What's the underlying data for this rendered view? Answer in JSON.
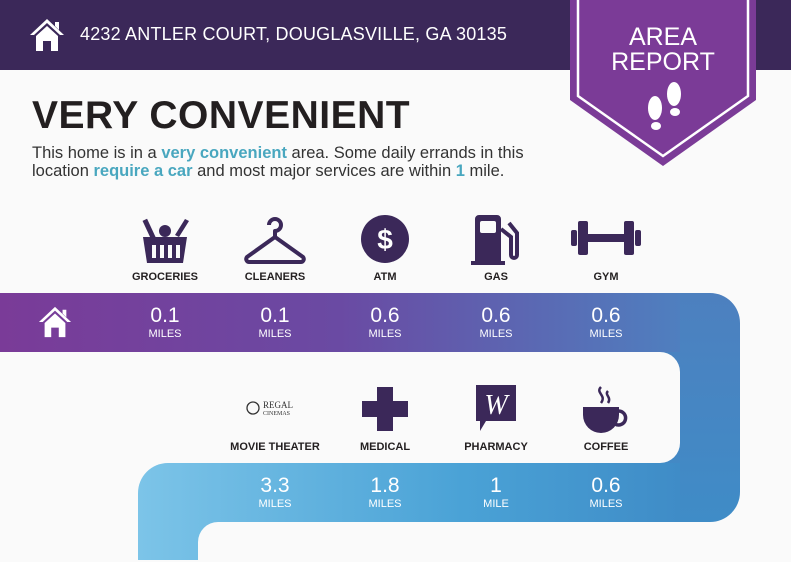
{
  "header": {
    "address": "4232 ANTLER COURT, DOUGLASVILLE, GA 30135",
    "home_icon": "house-icon"
  },
  "badge": {
    "line1": "AREA",
    "line2": "REPORT",
    "icon": "footprints-icon"
  },
  "title": "VERY CONVENIENT",
  "description": {
    "p1": "This home is in a ",
    "h1": "very convenient",
    "p2": " area. Some daily errands in this location ",
    "h2": "require a car",
    "p3": " and most major services are within ",
    "h3": "1",
    "p4": " mile."
  },
  "colors": {
    "header": "#3b2859",
    "accent": "#49a7bf",
    "icon": "#3b2859",
    "row1_start": "#7a3b98",
    "row1_end": "#4f7fbf",
    "row2_start": "#7cc4e8",
    "row2_end": "#3f8cc7"
  },
  "row1": [
    {
      "label": "GROCERIES",
      "value": "0.1",
      "unit": "MILES",
      "icon": "grocery-basket-icon"
    },
    {
      "label": "CLEANERS",
      "value": "0.1",
      "unit": "MILES",
      "icon": "hanger-icon"
    },
    {
      "label": "ATM",
      "value": "0.6",
      "unit": "MILES",
      "icon": "dollar-icon"
    },
    {
      "label": "GAS",
      "value": "0.6",
      "unit": "MILES",
      "icon": "gas-pump-icon"
    },
    {
      "label": "GYM",
      "value": "0.6",
      "unit": "MILES",
      "icon": "dumbbell-icon"
    }
  ],
  "row2": [
    {
      "label": "MOVIE THEATER",
      "value": "3.3",
      "unit": "MILES",
      "icon": "regal-cinemas-logo",
      "logo_text": "REGAL CINEMAS"
    },
    {
      "label": "MEDICAL",
      "value": "1.8",
      "unit": "MILES",
      "icon": "medical-cross-icon"
    },
    {
      "label": "PHARMACY",
      "value": "1",
      "unit": "MILE",
      "icon": "walgreens-logo",
      "logo_text": "W"
    },
    {
      "label": "COFFEE",
      "value": "0.6",
      "unit": "MILES",
      "icon": "coffee-cup-icon"
    }
  ]
}
